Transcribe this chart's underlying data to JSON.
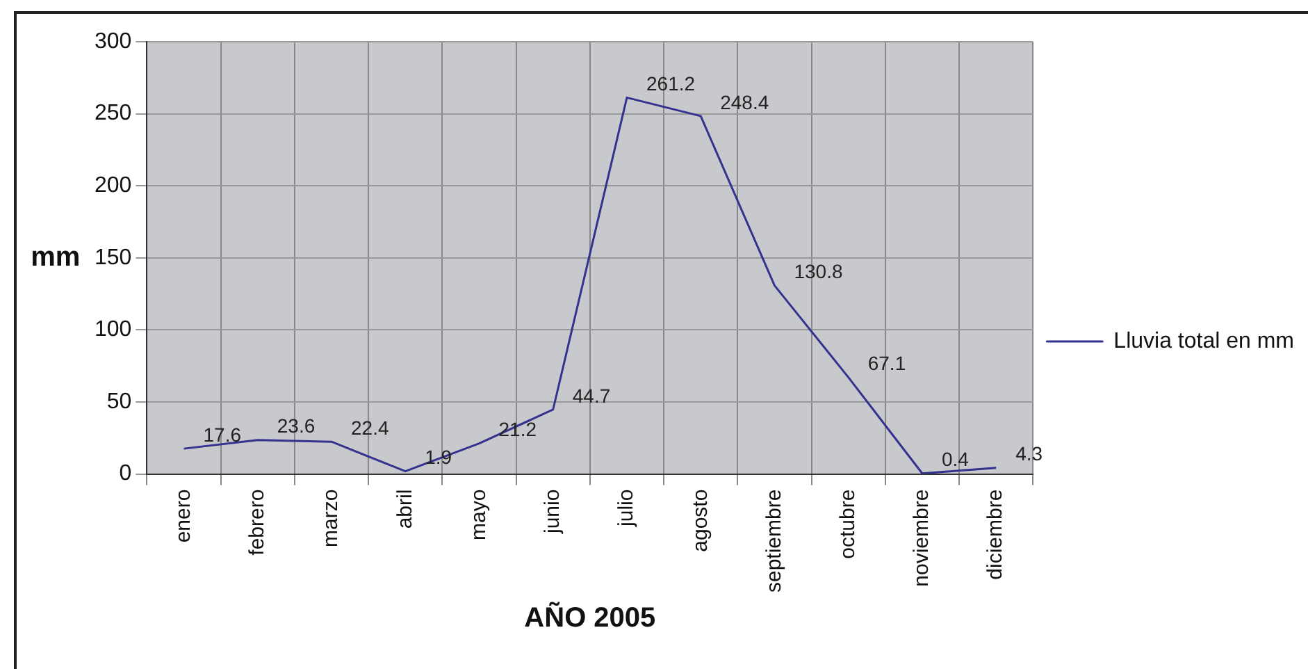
{
  "chart_data": {
    "type": "line",
    "xlabel": "AÑO 2005",
    "ylabel": "mm",
    "categories": [
      "enero",
      "febrero",
      "marzo",
      "abril",
      "mayo",
      "junio",
      "julio",
      "agosto",
      "septiembre",
      "octubre",
      "noviembre",
      "diciembre"
    ],
    "series": [
      {
        "name": "Lluvia total en mm",
        "color": "#33338f",
        "values": [
          17.6,
          23.6,
          22.4,
          1.9,
          21.2,
          44.7,
          261.2,
          248.4,
          130.8,
          67.1,
          0.4,
          4.3
        ]
      }
    ],
    "ylim": [
      0,
      300
    ],
    "yticks": [
      0,
      50,
      100,
      150,
      200,
      250,
      300
    ],
    "grid": true,
    "legend": "right",
    "data_labels": true,
    "marker": "none"
  }
}
